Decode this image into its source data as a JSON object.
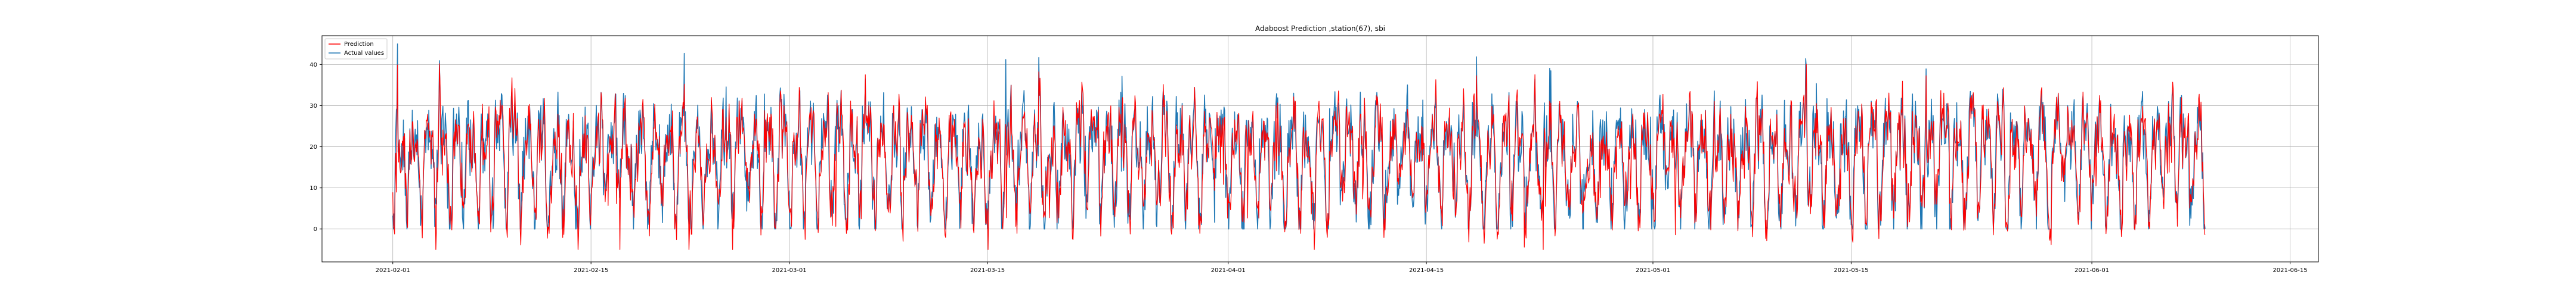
{
  "chart_data": {
    "type": "line",
    "title": "Adaboost Prediction ,station(67), sbi",
    "xlabel": "",
    "ylabel": "",
    "x_range": [
      "2021-01-27",
      "2021-06-17"
    ],
    "ylim": [
      -8,
      47
    ],
    "x_ticks": [
      "2021-02-01",
      "2021-02-15",
      "2021-03-01",
      "2021-03-15",
      "2021-04-01",
      "2021-04-15",
      "2021-05-01",
      "2021-05-15",
      "2021-06-01",
      "2021-06-15"
    ],
    "y_ticks": [
      0,
      10,
      20,
      30,
      40
    ],
    "grid": true,
    "legend_position": "top-left",
    "series": [
      {
        "name": "Prediction",
        "color": "#ff0000",
        "role": "prediction"
      },
      {
        "name": "Actual values",
        "color": "#1f77b4",
        "role": "actual"
      }
    ],
    "data_start": "2021-02-01",
    "data_end": "2021-06-09",
    "sampling": "hourly",
    "approx_value_range": [
      -5,
      45
    ],
    "approx_mean": 17
  }
}
